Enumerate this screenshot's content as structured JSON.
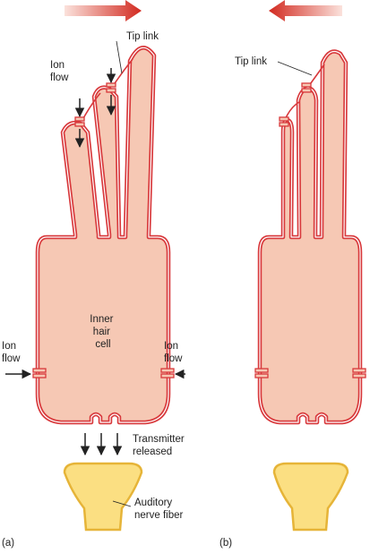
{
  "panel_a": {
    "label": "(a)",
    "tip_link": "Tip link",
    "ion_flow_top": [
      "Ion",
      "flow"
    ],
    "cell_label": [
      "Inner",
      "hair",
      "cell"
    ],
    "ion_flow_left": [
      "Ion",
      "flow"
    ],
    "ion_flow_right": [
      "Ion",
      "flow"
    ],
    "transmitter": [
      "Transmitter",
      "released"
    ],
    "nerve": [
      "Auditory",
      "nerve fiber"
    ]
  },
  "panel_b": {
    "label": "(b)",
    "tip_link": "Tip link"
  },
  "colors": {
    "membrane": "#d8383b",
    "cell_fill": "#f6c8b4",
    "nerve_fill": "#fbdf82",
    "nerve_stroke": "#e6b438",
    "arrow_dark": "#d22a20",
    "arrow_light": "#fbe2dc",
    "ink": "#222222"
  }
}
